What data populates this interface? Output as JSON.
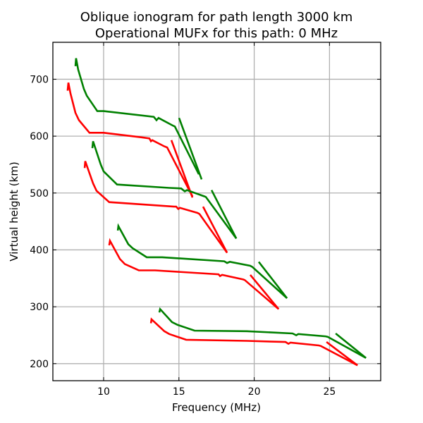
{
  "chart_data": {
    "type": "line",
    "title": "Oblique ionogram for path length 3000 km",
    "subtitle": "Operational MUFx for this path: 0 MHz",
    "xlabel": "Frequency (MHz)",
    "ylabel": "Virtual height (km)",
    "xlim": [
      6.63,
      28.4
    ],
    "ylim": [
      170,
      765
    ],
    "xticks": [
      10,
      15,
      20,
      25
    ],
    "xtick_labels": [
      "10",
      "15",
      "20",
      "25"
    ],
    "yticks": [
      200,
      300,
      400,
      500,
      600,
      700
    ],
    "ytick_labels": [
      "200",
      "300",
      "400",
      "500",
      "600",
      "700"
    ],
    "grid": true,
    "legend": null,
    "colors": {
      "green": "#008000",
      "red": "#ff0000"
    },
    "series": [
      {
        "name": "green-trace-1",
        "color": "green",
        "x": [
          8.13,
          8.17,
          8.31,
          8.69,
          8.88,
          9.58,
          10.0,
          13.33,
          13.51,
          13.65,
          14.64,
          14.73,
          16.32
        ],
        "y": [
          723,
          737,
          717,
          683,
          671,
          644,
          644,
          634,
          628,
          632,
          618,
          617,
          533
        ]
      },
      {
        "name": "green-trace-1-branch",
        "color": "green",
        "x": [
          15.01,
          16.51
        ],
        "y": [
          632,
          524
        ]
      },
      {
        "name": "red-trace-1",
        "color": "red",
        "x": [
          7.61,
          7.66,
          7.8,
          8.13,
          8.36,
          9.06,
          10.0,
          12.48,
          13.04,
          13.14,
          13.23,
          14.03,
          14.22,
          15.9
        ],
        "y": [
          680,
          694,
          675,
          641,
          628,
          606,
          606,
          598,
          596,
          591,
          593,
          582,
          580,
          494
        ]
      },
      {
        "name": "red-trace-1-branch",
        "color": "red",
        "x": [
          14.5,
          15.9
        ],
        "y": [
          593,
          492
        ]
      },
      {
        "name": "green-trace-2",
        "color": "green",
        "x": [
          9.25,
          9.3,
          9.81,
          10.0,
          10.89,
          14.36,
          15.15,
          15.39,
          15.53,
          16.7,
          16.79,
          18.81
        ],
        "y": [
          579,
          591,
          550,
          538,
          515,
          509,
          508,
          503,
          505,
          494,
          493,
          420
        ]
      },
      {
        "name": "green-trace-2-branch",
        "color": "green",
        "x": [
          17.17,
          18.81
        ],
        "y": [
          505,
          420
        ]
      },
      {
        "name": "red-trace-2",
        "color": "red",
        "x": [
          8.74,
          8.78,
          9.3,
          9.53,
          10.37,
          14.68,
          14.82,
          14.96,
          15.06,
          16.23,
          16.37,
          18.2
        ],
        "y": [
          544,
          556,
          517,
          504,
          484,
          476,
          476,
          472,
          474,
          465,
          463,
          395
        ]
      },
      {
        "name": "red-trace-2-branch",
        "color": "red",
        "x": [
          16.6,
          18.2
        ],
        "y": [
          476,
          395
        ]
      },
      {
        "name": "green-trace-3",
        "color": "green",
        "x": [
          10.94,
          10.98,
          11.64,
          11.92,
          12.86,
          13.89,
          18.01,
          18.2,
          18.38,
          19.74,
          19.88,
          22.18
        ],
        "y": [
          434,
          442,
          410,
          403,
          387,
          387,
          380,
          377,
          379,
          372,
          370,
          315
        ]
      },
      {
        "name": "green-trace-3-branch",
        "color": "green",
        "x": [
          20.3,
          22.18
        ],
        "y": [
          379,
          315
        ]
      },
      {
        "name": "red-trace-3",
        "color": "red",
        "x": [
          10.37,
          10.42,
          11.08,
          11.41,
          12.34,
          13.42,
          17.63,
          17.73,
          17.87,
          19.27,
          19.37,
          21.62
        ],
        "y": [
          408,
          416,
          384,
          375,
          364,
          364,
          357,
          354,
          356,
          348,
          347,
          296
        ]
      },
      {
        "name": "red-trace-3-branch",
        "color": "red",
        "x": [
          19.74,
          21.62
        ],
        "y": [
          356,
          296
        ]
      },
      {
        "name": "green-trace-4",
        "color": "green",
        "x": [
          13.7,
          13.75,
          14.54,
          14.92,
          16.04,
          19.51,
          22.55,
          22.79,
          22.93,
          24.75,
          24.89,
          27.42
        ],
        "y": [
          290,
          296,
          273,
          268,
          258,
          257,
          253,
          250,
          252,
          248,
          247,
          210
        ]
      },
      {
        "name": "green-trace-4-branch",
        "color": "green",
        "x": [
          25.41,
          27.42
        ],
        "y": [
          253,
          210
        ]
      },
      {
        "name": "red-trace-4",
        "color": "red",
        "x": [
          13.14,
          13.18,
          14.03,
          14.36,
          15.48,
          19.51,
          22.08,
          22.27,
          22.41,
          24.29,
          24.43,
          26.86
        ],
        "y": [
          271,
          278,
          257,
          252,
          242,
          240,
          238,
          235,
          237,
          232,
          231,
          197
        ]
      },
      {
        "name": "red-trace-4-branch",
        "color": "red",
        "x": [
          24.8,
          26.86
        ],
        "y": [
          238,
          197
        ]
      }
    ]
  }
}
